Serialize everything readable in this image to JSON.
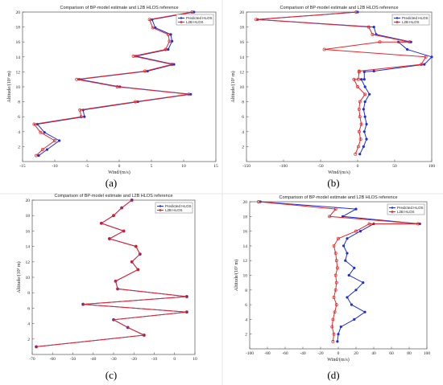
{
  "figure": {
    "captions": [
      "(a)",
      "(b)",
      "(c)",
      "(d)"
    ]
  },
  "colors": {
    "predicted": "#1f2fd6",
    "reference": "#e8262a"
  },
  "chart_data": [
    {
      "type": "line",
      "title": "Comparison of BP-model estimate and L2B HLOS reference",
      "xlabel": "Wind/(m/s)",
      "ylabel": "Altitude/(10³ m)",
      "xlim": [
        -15,
        15
      ],
      "ylim": [
        0,
        20
      ],
      "xticks": [
        -15,
        -10,
        -5,
        0,
        5,
        10,
        15
      ],
      "yticks": [
        2,
        4,
        6,
        8,
        10,
        12,
        14,
        16,
        18,
        20
      ],
      "legend": "top-right",
      "grid": false,
      "series": [
        {
          "name": "Predicted HLOS",
          "x": [
            -12.5,
            -11.2,
            -9.3,
            -11.6,
            -12.7,
            -5.4,
            -5.6,
            2.9,
            11.1,
            0.1,
            -6.2,
            4.4,
            8.5,
            2.6,
            7.6,
            8.2,
            8.0,
            5.6,
            5.1,
            11.6
          ],
          "y": [
            0.8,
            1.6,
            2.8,
            3.9,
            5.0,
            6.0,
            6.9,
            8.0,
            9.0,
            10.0,
            11.0,
            12.1,
            13.0,
            14.1,
            15.0,
            16.1,
            17.0,
            17.9,
            19.0,
            20.0
          ]
        },
        {
          "name": "L2B HLOS",
          "x": [
            -12.9,
            -11.9,
            -10.0,
            -12.2,
            -13.2,
            -5.9,
            -6.1,
            2.5,
            10.8,
            -0.3,
            -6.6,
            4.0,
            8.2,
            2.2,
            7.2,
            7.8,
            7.6,
            5.2,
            4.7,
            11.3
          ],
          "y": [
            0.8,
            1.6,
            2.8,
            3.9,
            5.0,
            6.0,
            6.9,
            8.0,
            9.0,
            10.0,
            11.0,
            12.1,
            13.0,
            14.1,
            15.0,
            16.1,
            17.0,
            17.9,
            19.0,
            20.0
          ]
        }
      ]
    },
    {
      "type": "line",
      "title": "Comparison of BP-model estimate and L2B HLOS reference",
      "xlabel": "Wind/(m/s)",
      "ylabel": "Altitude/(10³ m)",
      "xlim": [
        -150,
        100
      ],
      "ylim": [
        0,
        20
      ],
      "xticks": [
        -150,
        -100,
        -50,
        0,
        50,
        100
      ],
      "yticks": [
        2,
        4,
        6,
        8,
        10,
        12,
        14,
        16,
        18,
        20
      ],
      "legend": "top-right",
      "grid": false,
      "series": [
        {
          "name": "Predicted HLOS",
          "x": [
            3,
            8,
            12,
            9,
            12,
            10,
            8,
            10,
            16,
            10,
            5,
            9,
            9,
            22,
            90,
            100,
            67,
            55,
            72,
            25,
            22,
            -135,
            0
          ],
          "y": [
            1.0,
            2.0,
            3.0,
            4.0,
            5.0,
            6.0,
            7.0,
            8.0,
            9.0,
            10.0,
            11.0,
            11.0,
            12.0,
            12.1,
            13.0,
            14.0,
            15.0,
            16.0,
            16.0,
            17.0,
            18.0,
            19.0,
            20.0
          ]
        },
        {
          "name": "L2B HLOS",
          "x": [
            -3,
            1,
            4,
            2,
            5,
            3,
            2,
            3,
            10,
            0,
            -5,
            1,
            2,
            2,
            86,
            92,
            -45,
            30,
            70,
            20,
            15,
            -137,
            -2
          ],
          "y": [
            1.0,
            2.0,
            3.0,
            4.0,
            5.0,
            6.0,
            7.0,
            8.0,
            9.0,
            10.0,
            11.0,
            11.0,
            12.0,
            12.1,
            13.0,
            14.0,
            15.0,
            16.0,
            16.0,
            17.0,
            18.0,
            19.0,
            20.0
          ]
        }
      ]
    },
    {
      "type": "line",
      "title": "Comparison of BP-model estimate and L2B HLOS reference",
      "xlabel": "",
      "ylabel": "Altitude/(10³ m)",
      "xlim": [
        -70,
        10
      ],
      "ylim": [
        0,
        20
      ],
      "xticks": [
        -70,
        -60,
        -50,
        -40,
        -30,
        -20,
        -10,
        0,
        10
      ],
      "yticks": [
        2,
        4,
        6,
        8,
        10,
        12,
        14,
        16,
        18,
        20
      ],
      "legend": "top-right",
      "grid": false,
      "series": [
        {
          "name": "Predicted HLOS",
          "x": [
            -68,
            -15,
            -23,
            -30,
            6,
            -45,
            6,
            -28,
            -29,
            -18,
            -21,
            -17,
            -19,
            -32,
            -25,
            -36,
            -30,
            -26,
            -21
          ],
          "y": [
            1.0,
            2.5,
            3.5,
            4.5,
            5.5,
            6.5,
            7.5,
            8.5,
            9.5,
            11.0,
            12.0,
            13.0,
            14.0,
            15.0,
            16.0,
            17.0,
            18.0,
            19.0,
            20.0
          ]
        },
        {
          "name": "L2B HLOS",
          "x": [
            -68,
            -15,
            -23,
            -30,
            6,
            -45,
            6,
            -28,
            -29,
            -18,
            -21,
            -17,
            -19,
            -32,
            -25,
            -36,
            -30,
            -26,
            -21
          ],
          "y": [
            1.0,
            2.5,
            3.5,
            4.5,
            5.5,
            6.5,
            7.5,
            8.5,
            9.5,
            11.0,
            12.0,
            13.0,
            14.0,
            15.0,
            16.0,
            17.0,
            18.0,
            19.0,
            20.0
          ]
        }
      ]
    },
    {
      "type": "line",
      "title": "Comparison of BP-model estimate and L2B HLOS reference",
      "xlabel": "Wind/(m/s)",
      "ylabel": "Altitude/(10³ m)",
      "xlim": [
        -100,
        100
      ],
      "ylim": [
        0,
        20
      ],
      "xticks": [
        -100,
        -80,
        -60,
        -40,
        -20,
        0,
        20,
        40,
        60,
        80,
        100
      ],
      "yticks": [
        2,
        4,
        6,
        8,
        10,
        12,
        14,
        16,
        18,
        20
      ],
      "legend": "top-right",
      "grid": false,
      "series": [
        {
          "name": "Predicted HLOS",
          "x": [
            -1,
            0,
            3,
            18,
            30,
            15,
            10,
            20,
            28,
            12,
            18,
            8,
            10,
            6,
            10,
            25,
            40,
            92,
            5,
            20,
            -88
          ],
          "y": [
            1.0,
            2.0,
            3.0,
            4.0,
            5.0,
            6.0,
            7.0,
            8.0,
            9.0,
            10.0,
            11.0,
            12.0,
            13.0,
            14.0,
            15.0,
            16.0,
            17.0,
            17.0,
            18.0,
            19.0,
            20.0
          ]
        },
        {
          "name": "L2B HLOS",
          "x": [
            -6,
            -5,
            -7,
            -6,
            -4,
            -2,
            -5,
            -3,
            -2,
            -3,
            -1,
            -2,
            -3,
            -5,
            0,
            20,
            35,
            90,
            -10,
            -3,
            -90
          ],
          "y": [
            1.0,
            2.0,
            3.0,
            4.0,
            5.0,
            6.0,
            7.0,
            8.0,
            9.0,
            10.0,
            11.0,
            12.0,
            13.0,
            14.0,
            15.0,
            16.0,
            17.0,
            17.0,
            18.0,
            19.0,
            20.0
          ]
        }
      ]
    }
  ]
}
